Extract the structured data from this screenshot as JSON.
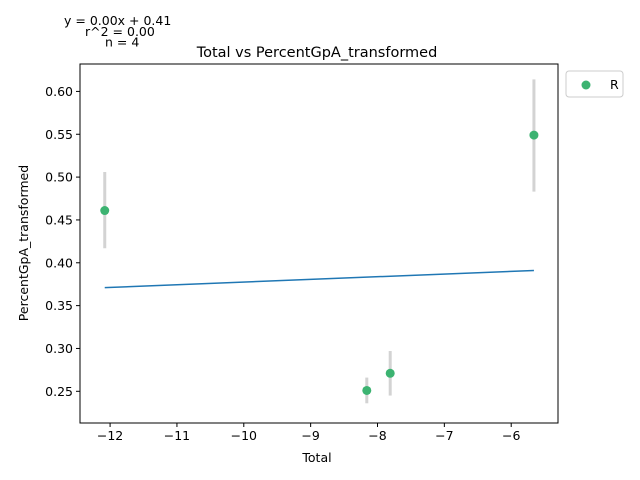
{
  "chart_data": {
    "type": "scatter",
    "title": "Total vs PercentGpA_transformed",
    "xlabel": "Total",
    "ylabel": "PercentGpA_transformed",
    "xlim": [
      -12.45,
      -5.3
    ],
    "ylim": [
      0.213,
      0.632
    ],
    "xticks": [
      -12,
      -11,
      -10,
      -9,
      -8,
      -7,
      -6
    ],
    "yticks": [
      0.25,
      0.3,
      0.35,
      0.4,
      0.45,
      0.5,
      0.55,
      0.6
    ],
    "xtick_labels": [
      "−12",
      "−11",
      "−10",
      "−9",
      "−8",
      "−7",
      "−6"
    ],
    "ytick_labels": [
      "0.25",
      "0.30",
      "0.35",
      "0.40",
      "0.45",
      "0.50",
      "0.55",
      "0.60"
    ],
    "grid": false,
    "legend_position": "outside-top-right",
    "annotations": [
      "y = 0.00x + 0.41",
      "r^2 = 0.00",
      "n = 4"
    ],
    "series": [
      {
        "name": "R",
        "color": "#3cb371",
        "points": [
          {
            "x": -12.08,
            "y": 0.461,
            "err_low": 0.417,
            "err_high": 0.506
          },
          {
            "x": -8.16,
            "y": 0.251,
            "err_low": 0.236,
            "err_high": 0.266
          },
          {
            "x": -7.81,
            "y": 0.271,
            "err_low": 0.245,
            "err_high": 0.297
          },
          {
            "x": -5.66,
            "y": 0.549,
            "err_low": 0.483,
            "err_high": 0.614
          }
        ]
      }
    ],
    "fit_line": {
      "color": "#1f77b4",
      "x": [
        -12.08,
        -5.66
      ],
      "y": [
        0.371,
        0.391
      ]
    },
    "errorbar_color": "#d3d3d3"
  }
}
